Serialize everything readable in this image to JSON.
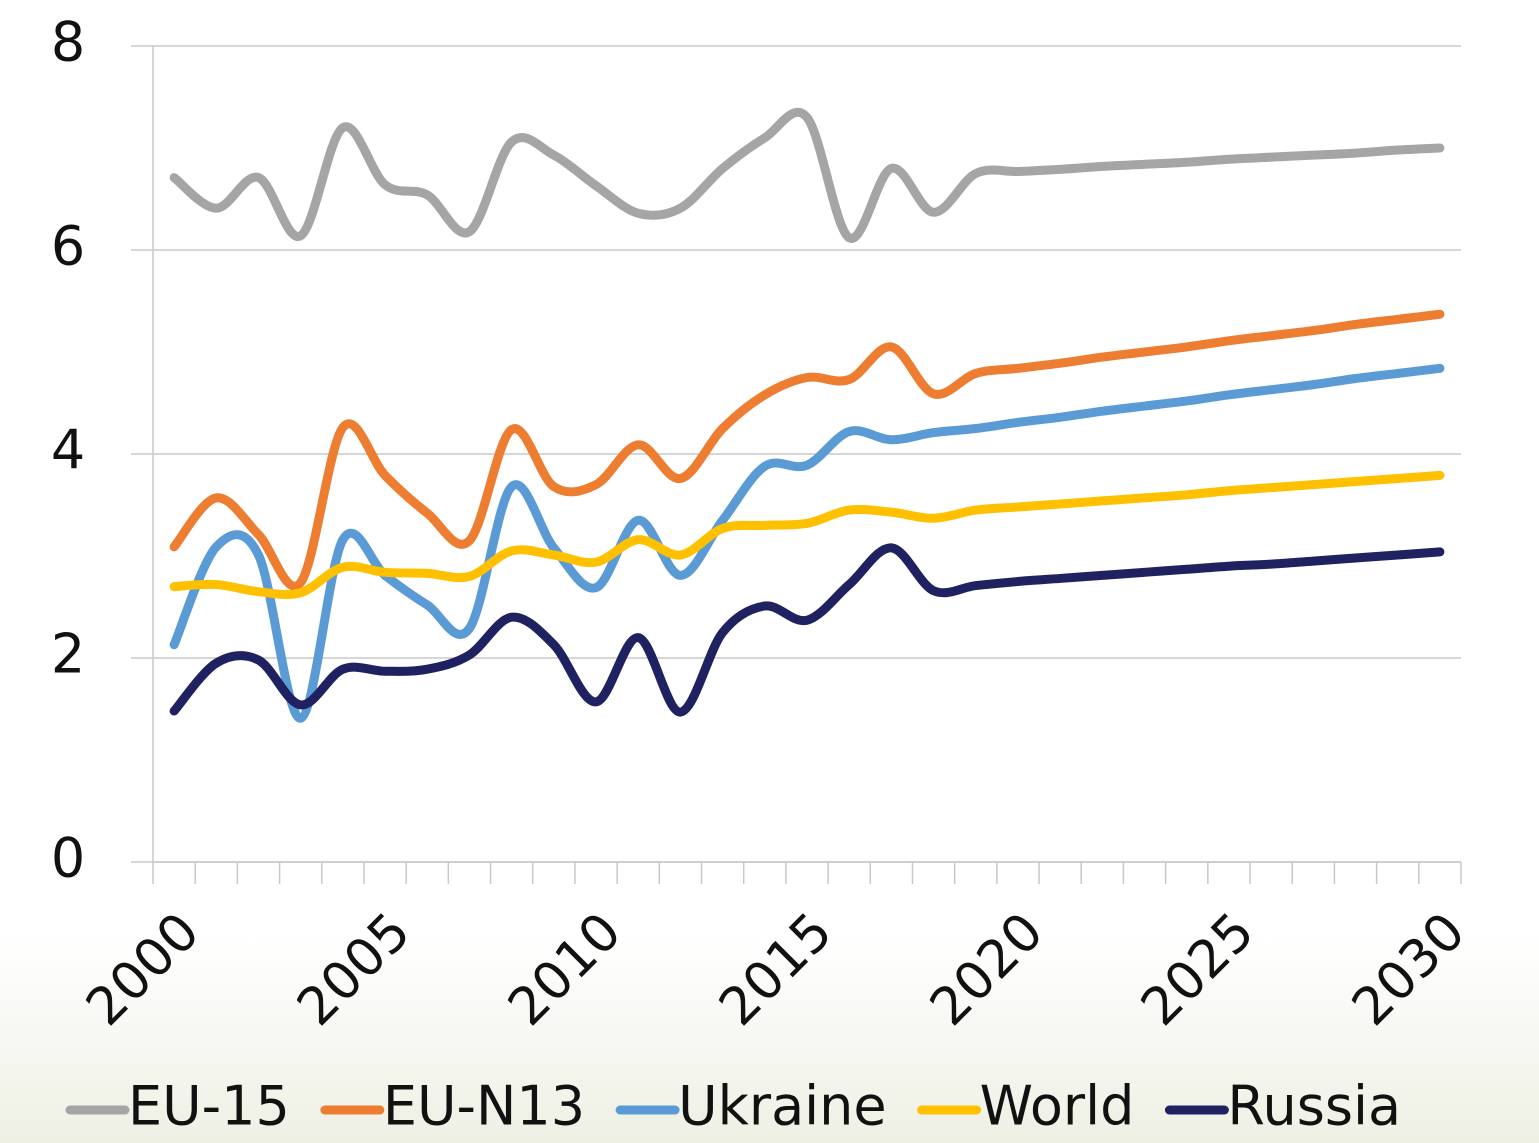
{
  "chart_data": {
    "type": "line",
    "categories": [
      "2000",
      null,
      null,
      null,
      null,
      "2005",
      null,
      null,
      null,
      null,
      "2010",
      null,
      null,
      null,
      null,
      "2015",
      null,
      null,
      null,
      null,
      "2020",
      null,
      null,
      null,
      null,
      "2025",
      null,
      null,
      null,
      null,
      "2030"
    ],
    "series": [
      {
        "name": "EU-15",
        "color": "#a5a5a5",
        "values": [
          6.71,
          6.41,
          6.71,
          6.14,
          7.2,
          6.64,
          6.54,
          6.18,
          7.06,
          6.93,
          6.63,
          6.36,
          6.41,
          6.8,
          7.1,
          7.3,
          6.12,
          6.8,
          6.37,
          6.75,
          6.77,
          6.79,
          6.82,
          6.84,
          6.86,
          6.89,
          6.91,
          6.93,
          6.95,
          6.98,
          7.0
        ]
      },
      {
        "name": "EU-N13",
        "color": "#ed7d31",
        "values": [
          3.09,
          3.57,
          3.21,
          2.74,
          4.26,
          3.79,
          3.42,
          3.15,
          4.24,
          3.68,
          3.7,
          4.09,
          3.76,
          4.25,
          4.58,
          4.75,
          4.73,
          5.05,
          4.59,
          4.79,
          4.84,
          4.89,
          4.95,
          5.0,
          5.05,
          5.11,
          5.16,
          5.21,
          5.27,
          5.32,
          5.37
        ]
      },
      {
        "name": "Ukraine",
        "color": "#5b9bd5",
        "values": [
          2.13,
          3.09,
          3.01,
          1.41,
          3.16,
          2.81,
          2.52,
          2.29,
          3.68,
          3.08,
          2.69,
          3.35,
          2.81,
          3.35,
          3.88,
          3.89,
          4.22,
          4.14,
          4.21,
          4.25,
          4.31,
          4.36,
          4.42,
          4.47,
          4.52,
          4.58,
          4.63,
          4.68,
          4.74,
          4.79,
          4.84
        ]
      },
      {
        "name": "World",
        "color": "#ffc000",
        "values": [
          2.7,
          2.72,
          2.65,
          2.64,
          2.89,
          2.84,
          2.83,
          2.8,
          3.05,
          3.01,
          2.94,
          3.16,
          3.01,
          3.27,
          3.3,
          3.32,
          3.45,
          3.43,
          3.37,
          3.45,
          3.48,
          3.51,
          3.54,
          3.57,
          3.6,
          3.64,
          3.67,
          3.7,
          3.73,
          3.76,
          3.79
        ]
      },
      {
        "name": "Russia",
        "color": "#1f2160",
        "values": [
          1.48,
          1.95,
          1.98,
          1.54,
          1.89,
          1.87,
          1.89,
          2.03,
          2.4,
          2.13,
          1.57,
          2.2,
          1.47,
          2.25,
          2.51,
          2.37,
          2.72,
          3.08,
          2.66,
          2.71,
          2.75,
          2.78,
          2.81,
          2.84,
          2.87,
          2.9,
          2.92,
          2.95,
          2.98,
          3.01,
          3.04
        ]
      }
    ],
    "ylim": [
      0,
      8
    ],
    "yticks": [
      0,
      2,
      4,
      6,
      8
    ],
    "grid": true,
    "legend": "bottom"
  }
}
